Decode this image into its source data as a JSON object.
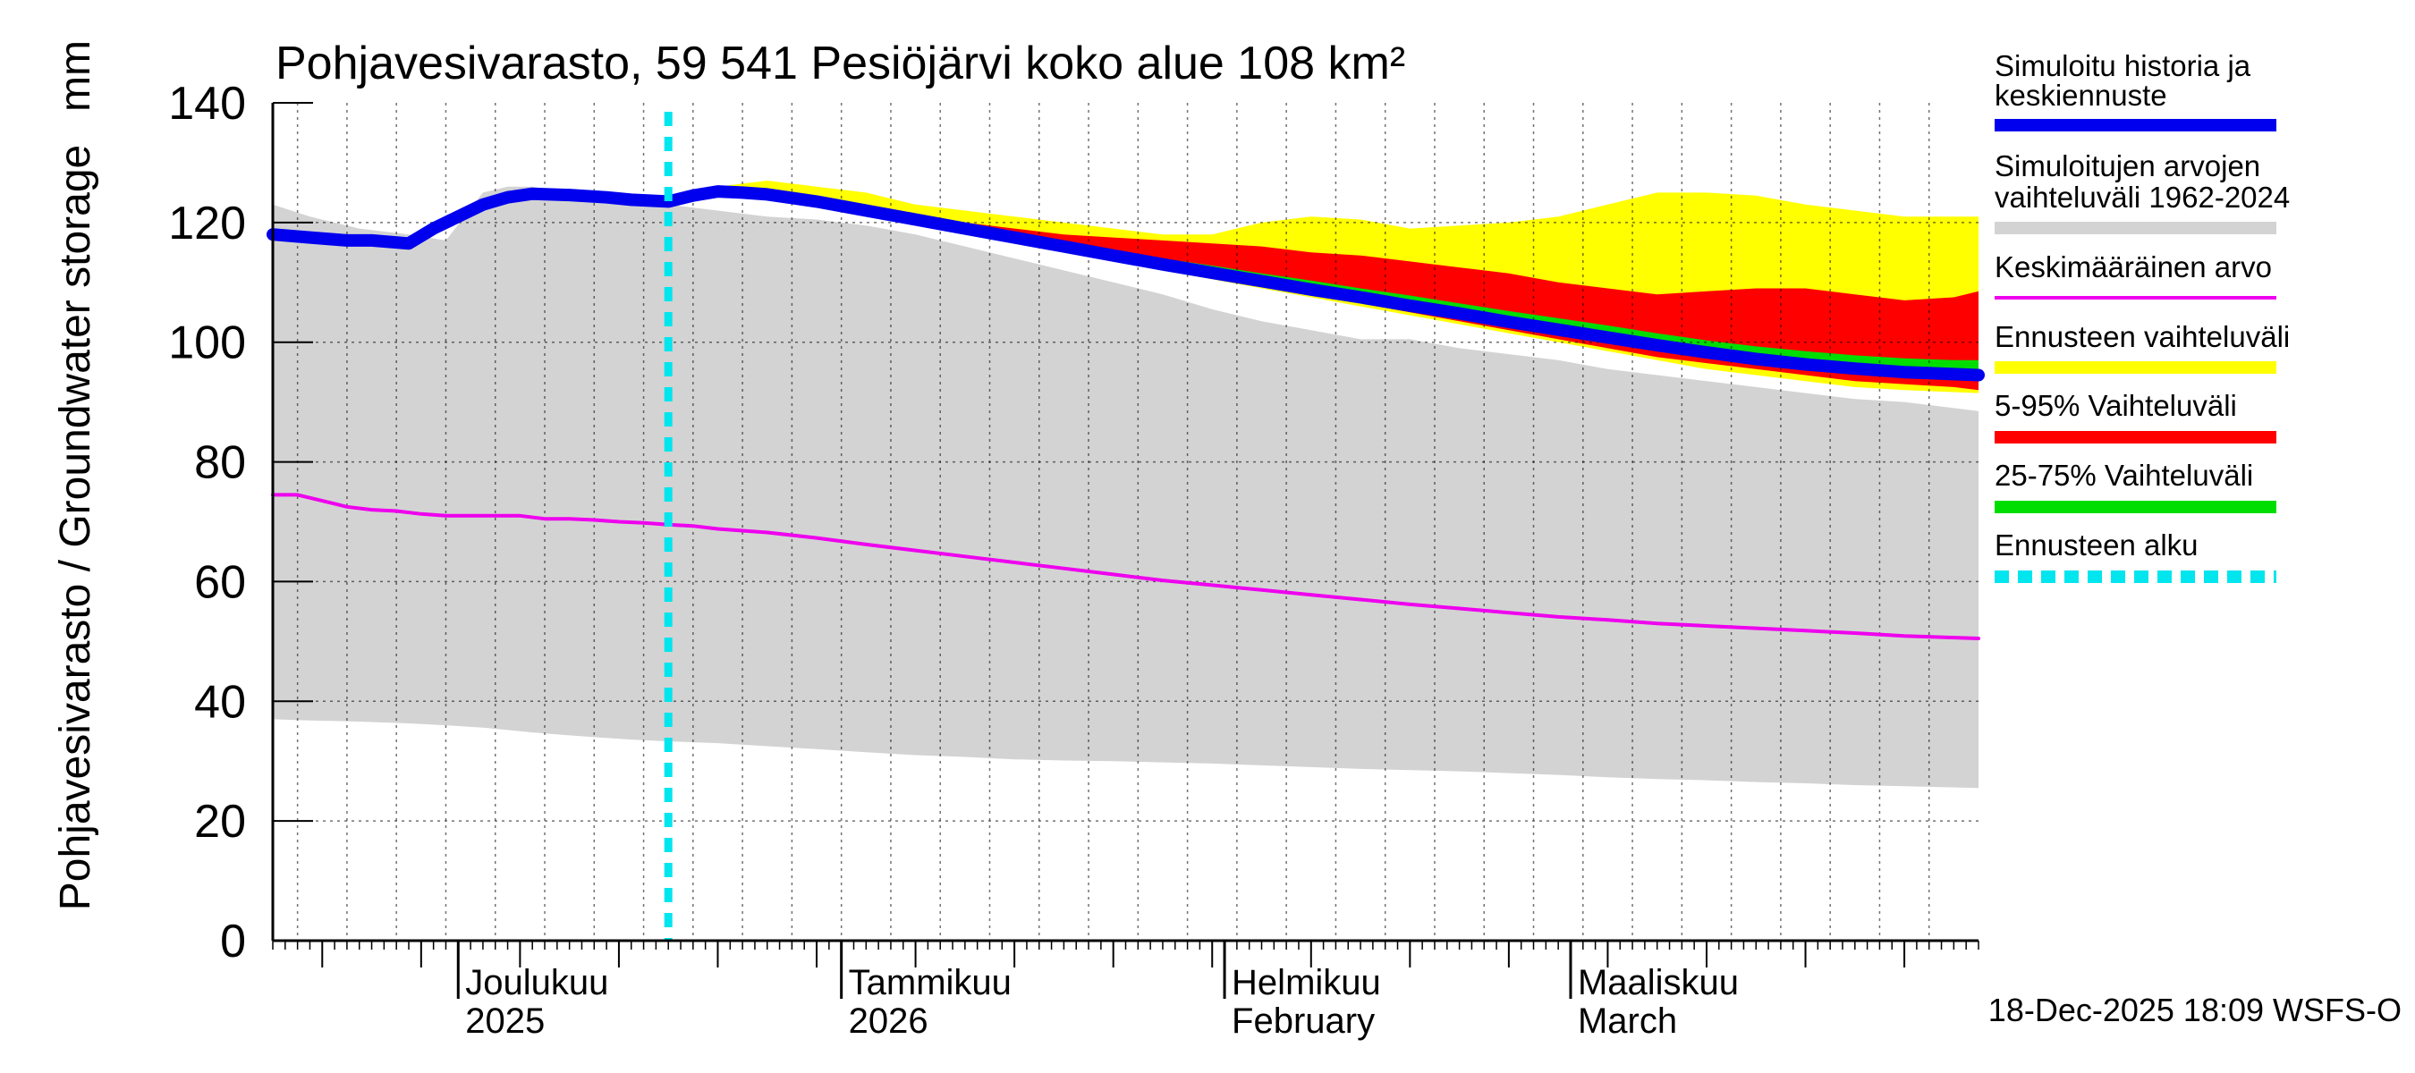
{
  "chart_data": {
    "type": "area",
    "title": "Pohjavesivarasto, 59 541 Pesiöjärvi koko alue 108 km²",
    "ylabel": "Pohjavesivarasto / Groundwater storage",
    "yunit": "mm",
    "ylim": [
      0,
      140
    ],
    "yticks": [
      "0",
      "20",
      "40",
      "60",
      "80",
      "100",
      "120",
      "140"
    ],
    "xrange_days": [
      0,
      138
    ],
    "month_labels": [
      {
        "line1": "Joulukuu",
        "line2": "2025",
        "day": 15
      },
      {
        "line1": "Tammikuu",
        "line2": "2026",
        "day": 46
      },
      {
        "line1": "Helmikuu",
        "line2": "February",
        "day": 77
      },
      {
        "line1": "Maaliskuu",
        "line2": "March",
        "day": 105
      }
    ],
    "forecast_start_day": 32,
    "legend": [
      {
        "label_line1": "Simuloitu historia ja",
        "label_line2": "keskiennuste",
        "color": "#0000ee",
        "style": "solid"
      },
      {
        "label_line1": "Simuloitujen arvojen",
        "label_line2": "vaihteluväli 1962-2024",
        "color": "#d3d3d3",
        "style": "solid"
      },
      {
        "label_line1": "Keskimääräinen arvo",
        "label_line2": "",
        "color": "#ee00ee",
        "style": "solid"
      },
      {
        "label_line1": "Ennusteen vaihteluväli",
        "label_line2": "",
        "color": "#ffff00",
        "style": "solid"
      },
      {
        "label_line1": "5-95% Vaihteluväli",
        "label_line2": "",
        "color": "#ff0000",
        "style": "solid"
      },
      {
        "label_line1": "25-75% Vaihteluväli",
        "label_line2": "",
        "color": "#00dd00",
        "style": "solid"
      },
      {
        "label_line1": "Ennusteen alku",
        "label_line2": "",
        "color": "#00e5ee",
        "style": "dashed"
      }
    ],
    "footer": "18-Dec-2025 18:09 WSFS-O",
    "series": {
      "hist_range": {
        "x": [
          0,
          3,
          7,
          11,
          14,
          17,
          19,
          21,
          24,
          26,
          29,
          32,
          36,
          40,
          44,
          48,
          52,
          56,
          60,
          64,
          68,
          72,
          76,
          80,
          84,
          88,
          92,
          96,
          100,
          104,
          108,
          112,
          116,
          120,
          124,
          128,
          132,
          138
        ],
        "upper": [
          123,
          121,
          119,
          118,
          117,
          125,
          126,
          126,
          125,
          124,
          124,
          123,
          122,
          121,
          120.5,
          119.5,
          118,
          116,
          114,
          112,
          110,
          108,
          105.5,
          103.5,
          102,
          100.5,
          100.5,
          99,
          98,
          97,
          95.5,
          94.5,
          93.5,
          92.5,
          91.5,
          90.5,
          90,
          88.5
        ],
        "lower": [
          37,
          36.8,
          36.6,
          36.3,
          36,
          35.6,
          35.2,
          34.8,
          34.3,
          34,
          33.6,
          33.3,
          33,
          32.5,
          32,
          31.5,
          31,
          30.7,
          30.3,
          30.1,
          30,
          29.8,
          29.6,
          29.3,
          29,
          28.7,
          28.5,
          28.3,
          28,
          27.7,
          27.3,
          27,
          26.8,
          26.5,
          26.3,
          26,
          25.8,
          25.5
        ]
      },
      "fc_range": {
        "x": [
          32,
          36,
          40,
          44,
          48,
          52,
          56,
          60,
          64,
          68,
          72,
          76,
          80,
          84,
          88,
          92,
          96,
          100,
          104,
          108,
          112,
          116,
          120,
          124,
          128,
          132,
          138
        ],
        "upper": [
          124,
          126,
          127,
          126,
          125,
          123,
          122,
          121,
          120,
          119,
          118,
          118,
          120,
          121,
          120.5,
          119,
          119.5,
          120,
          121,
          123,
          125,
          125,
          124.5,
          123,
          122,
          121,
          121
        ],
        "lower": [
          123.5,
          125,
          124,
          122.5,
          121,
          119.5,
          118,
          116.5,
          115,
          113.5,
          112,
          110.5,
          109,
          107.5,
          106,
          104.5,
          103,
          101.5,
          100,
          98.5,
          97,
          95.5,
          94.5,
          93.5,
          92.5,
          92,
          91.5
        ]
      },
      "p5_95": {
        "x": [
          32,
          36,
          40,
          44,
          48,
          52,
          56,
          60,
          64,
          68,
          72,
          76,
          80,
          84,
          88,
          92,
          96,
          100,
          104,
          108,
          112,
          116,
          120,
          124,
          128,
          132,
          136,
          138
        ],
        "upper": [
          124,
          125.5,
          125.5,
          124.5,
          123,
          121.5,
          120,
          119,
          118,
          117.5,
          117,
          116.5,
          116,
          115,
          114.5,
          113.5,
          112.5,
          111.5,
          110,
          109,
          108,
          108.5,
          109,
          109,
          108,
          107,
          107.5,
          108.5
        ],
        "lower": [
          123.5,
          125,
          124.5,
          123,
          121.5,
          120,
          118.5,
          117,
          115.5,
          114,
          112.5,
          111,
          109.5,
          108,
          106.5,
          105,
          103.5,
          102,
          100.5,
          99,
          97.5,
          96.5,
          95.5,
          94.5,
          93.5,
          93,
          92.5,
          92
        ]
      },
      "p25_75": {
        "x": [
          32,
          36,
          40,
          44,
          48,
          52,
          56,
          60,
          64,
          68,
          72,
          76,
          80,
          84,
          88,
          92,
          96,
          100,
          104,
          108,
          112,
          116,
          120,
          124,
          128,
          132,
          136,
          138
        ],
        "upper": [
          124,
          125.2,
          125.2,
          124.5,
          123,
          121.5,
          120,
          118.5,
          117,
          115.5,
          114,
          112.8,
          111.5,
          110.3,
          109,
          107.8,
          106.5,
          105.2,
          104,
          102.8,
          101.5,
          100.3,
          99.3,
          98.5,
          97.8,
          97.3,
          97,
          97
        ],
        "lower": [
          123.8,
          124.8,
          124.5,
          123.5,
          122,
          120.5,
          119,
          117.5,
          116,
          114.5,
          113,
          111.7,
          110.3,
          109,
          107.7,
          106.3,
          105,
          103.6,
          102.3,
          101,
          99.7,
          98.5,
          97.4,
          96.4,
          95.5,
          94.8,
          94.2,
          93.8
        ]
      },
      "median": {
        "x": [
          0,
          3,
          6,
          8,
          11,
          13,
          15,
          17,
          19,
          21,
          24,
          27,
          29,
          32,
          34,
          36,
          38,
          40,
          44,
          48,
          52,
          56,
          60,
          64,
          68,
          72,
          76,
          80,
          84,
          88,
          92,
          96,
          100,
          104,
          108,
          112,
          116,
          120,
          124,
          128,
          132,
          138
        ],
        "values": [
          118,
          117.5,
          117,
          117,
          116.5,
          119,
          121,
          123,
          124.2,
          124.8,
          124.6,
          124.2,
          123.8,
          123.5,
          124.5,
          125.2,
          125,
          124.7,
          123.5,
          122,
          120.5,
          119,
          117.5,
          116,
          114.5,
          113,
          111.6,
          110.2,
          108.8,
          107.5,
          106.1,
          104.8,
          103.4,
          102.1,
          100.8,
          99.5,
          98.3,
          97.2,
          96.3,
          95.6,
          95,
          94.5
        ]
      },
      "mean": {
        "x": [
          0,
          2,
          4,
          6,
          8,
          10,
          12,
          14,
          16,
          18,
          20,
          22,
          24,
          26,
          28,
          30,
          32,
          34,
          36,
          38,
          40,
          44,
          48,
          52,
          56,
          60,
          64,
          68,
          72,
          76,
          80,
          84,
          88,
          92,
          96,
          100,
          104,
          108,
          112,
          116,
          120,
          124,
          128,
          132,
          138
        ],
        "values": [
          74.5,
          74.5,
          73.5,
          72.5,
          72,
          71.8,
          71.3,
          71,
          71,
          71,
          71,
          70.5,
          70.5,
          70.3,
          70,
          69.8,
          69.5,
          69.3,
          68.8,
          68.5,
          68.2,
          67.3,
          66.2,
          65.2,
          64.2,
          63.2,
          62.2,
          61.2,
          60.2,
          59.4,
          58.6,
          57.8,
          57,
          56.2,
          55.5,
          54.8,
          54.1,
          53.6,
          53,
          52.6,
          52.2,
          51.8,
          51.4,
          50.9,
          50.5
        ]
      }
    }
  }
}
